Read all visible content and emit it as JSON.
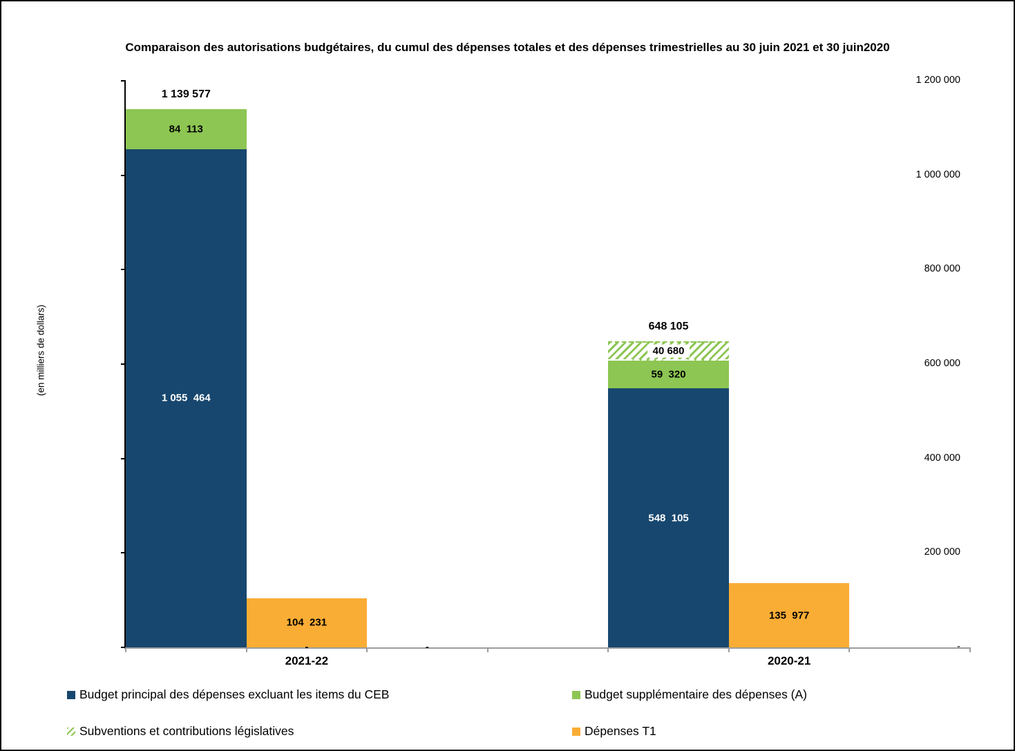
{
  "chart_data": {
    "type": "bar",
    "variant": "clustered-stacked",
    "title": "Comparaison des autorisations budgétaires, du cumul des dépenses totales et des dépenses trimestrielles au 30 juin 2021 et 30 juin2020",
    "ylabel": "(en milliers de dollars)",
    "ylim": [
      0,
      1200000
    ],
    "ytick_interval": 200000,
    "ytick_labels_bottom_up": [
      "-",
      "200 000",
      "400 000",
      "600 000",
      "800 000",
      "1 000 000",
      "1 200 000"
    ],
    "grid": false,
    "legend_position": "bottom",
    "categories": [
      "2021-22",
      "2020-21"
    ],
    "series": [
      {
        "name": "Budget principal des dépenses excluant les items du CEB",
        "key": "principal",
        "color": "#17476e",
        "values": [
          1055464,
          548105
        ]
      },
      {
        "name": "Budget supplémentaire des dépenses (A)",
        "key": "supplementaire",
        "color": "#8dc653",
        "values": [
          84113,
          59320
        ]
      },
      {
        "name": "Subventions et contributions législatives",
        "key": "subventions",
        "color": "hatched-green-on-white",
        "values": [
          0,
          40680
        ]
      },
      {
        "name": "Dépenses T1",
        "key": "depenses_t1",
        "color": "#faad35",
        "values": [
          104231,
          135977
        ]
      }
    ],
    "stack_order": [
      "principal",
      "supplementaire",
      "subventions"
    ],
    "groups": [
      {
        "category": "2021-22",
        "segments": {
          "principal": 1055464,
          "supplementaire": 84113,
          "subventions": 0,
          "depenses_t1": 104231
        },
        "display": {
          "principal": "1 055  464",
          "supplementaire": "84  113",
          "subventions": "",
          "depenses_t1": "104  231",
          "total": "1 139 577"
        },
        "total": 1139577
      },
      {
        "category": "2020-21",
        "segments": {
          "principal": 548105,
          "supplementaire": 59320,
          "subventions": 40680,
          "depenses_t1": 135977
        },
        "display": {
          "principal": "548  105",
          "supplementaire": "59  320",
          "subventions": "40 680",
          "depenses_t1": "135  977",
          "total": "648 105"
        },
        "total": 648105
      }
    ],
    "zero_markers": [
      {
        "slot": 1,
        "label": "-"
      },
      {
        "slot": 2,
        "label": "-"
      }
    ],
    "layout_hints": {
      "slots": 7,
      "stack_slots": [
        0,
        4
      ],
      "bar_slots": [
        1,
        5
      ],
      "axis_color": "#9c9c9c",
      "y_axis_color": "#000000"
    },
    "colors": {
      "principal": "#17476e",
      "supplementaire": "#8dc653",
      "hatch_stripe": "#8dc653",
      "depenses_t1": "#faad35",
      "label_on_dark": "#ffffff",
      "label_default": "#000000"
    }
  },
  "legend": {
    "items": [
      {
        "label": "Budget principal des dépenses excluant les items du CEB",
        "swatch": "solid-dark-blue"
      },
      {
        "label": "Budget supplémentaire des dépenses (A)",
        "swatch": "solid-green"
      },
      {
        "label": "Subventions et contributions législatives",
        "swatch": "hatched-green"
      },
      {
        "label": "Dépenses T1",
        "swatch": "solid-orange"
      }
    ]
  }
}
